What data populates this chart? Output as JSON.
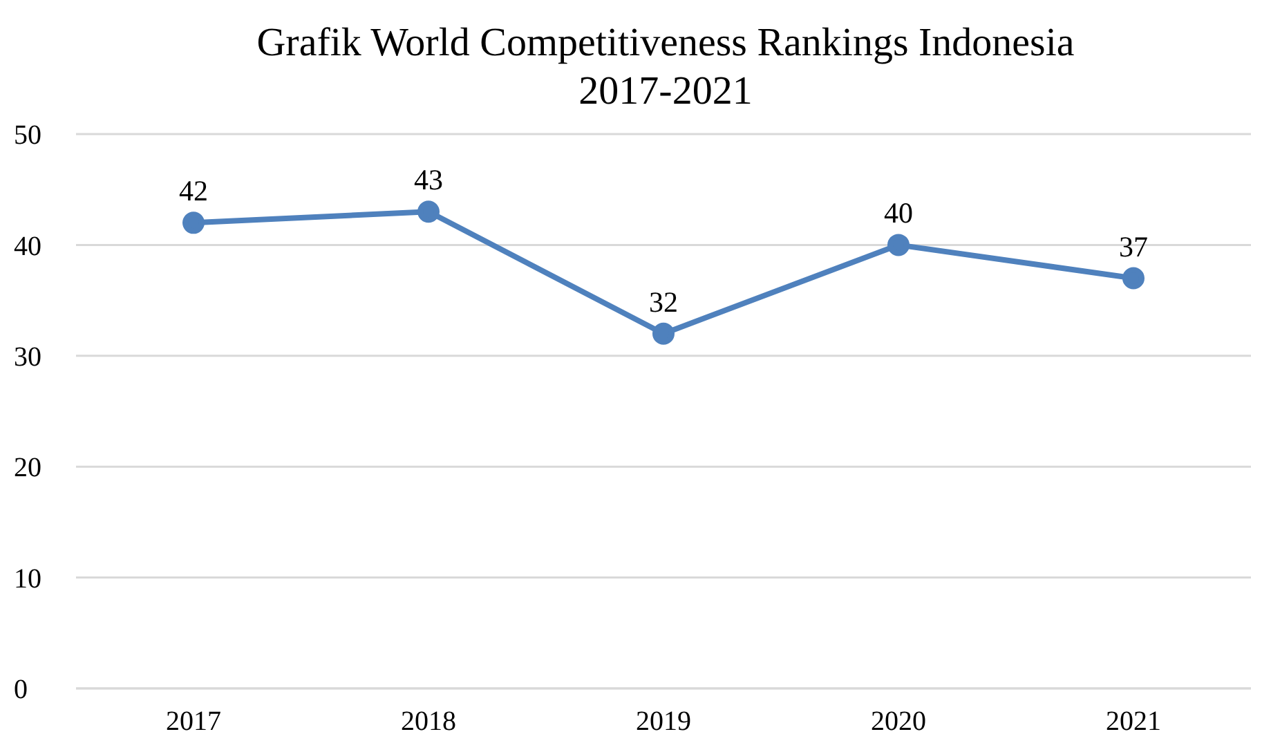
{
  "chart_data": {
    "type": "line",
    "title": "Grafik World Competitiveness Rankings Indonesia\n2017-2021",
    "categories": [
      "2017",
      "2018",
      "2019",
      "2020",
      "2021"
    ],
    "series": [
      {
        "color": "#4f81bd",
        "values": [
          42,
          43,
          32,
          40,
          37
        ]
      }
    ],
    "ylim": [
      0,
      50
    ],
    "yticks": [
      0,
      10,
      20,
      30,
      40,
      50
    ],
    "grid": "y",
    "legend": false,
    "marker": "circle",
    "line_style": "solid",
    "data_labels": true
  }
}
